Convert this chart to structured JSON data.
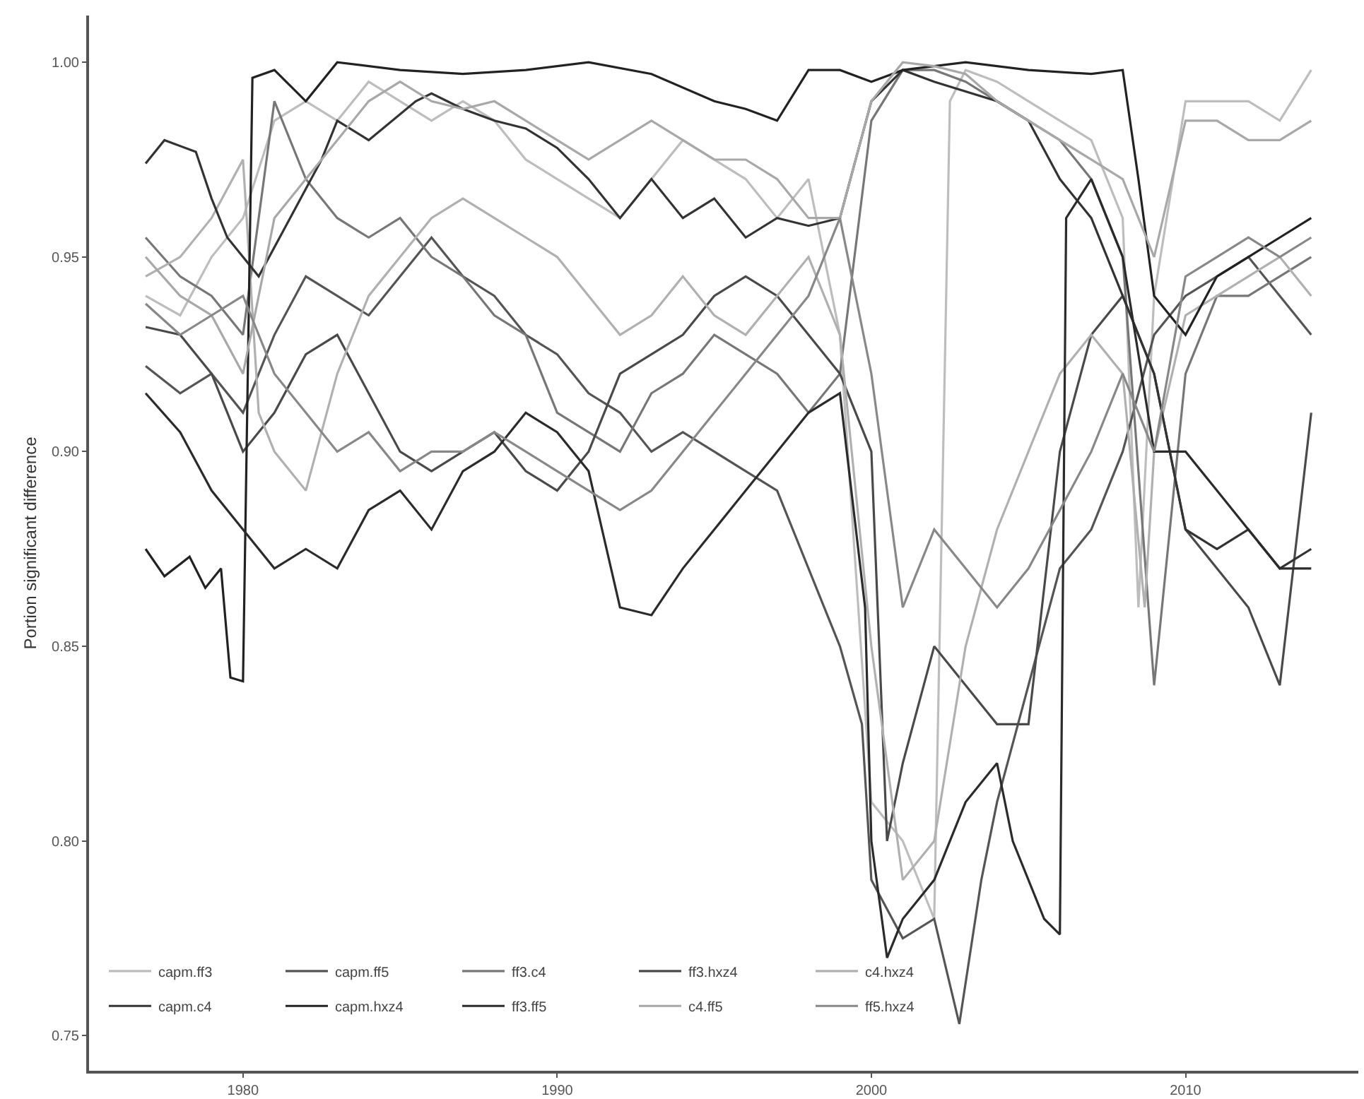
{
  "chart_data": {
    "type": "line",
    "ylabel": "Portion significant difference",
    "xlim": [
      1975.1,
      2015.5
    ],
    "xticks": [
      1980,
      1990,
      2000,
      2010
    ],
    "ylim": [
      0.741,
      1.012
    ],
    "yticks": [
      0.75,
      {
        "value": 0.8,
        "label": "0.80"
      },
      0.85,
      {
        "value": 0.9,
        "label": "0.90"
      },
      0.95,
      {
        "value": 1.0,
        "label": "1.00"
      }
    ],
    "legend": "bottom left",
    "series": [
      {
        "name": "capm.ff3",
        "color": "#bdbdbd",
        "x": [
          1976.9,
          1978,
          1979,
          1980,
          1981,
          1982,
          1983,
          1984,
          1985,
          1986,
          1987,
          1988,
          1989,
          1990,
          1991,
          1992,
          1993,
          1994,
          1995,
          1996,
          1997,
          1998,
          1999,
          2000,
          2001,
          2002,
          2002.5,
          2003,
          2004,
          2005,
          2006,
          2007,
          2008,
          2008.5,
          2009,
          2010,
          2011,
          2012,
          2013,
          2014
        ],
        "values": [
          0.94,
          0.935,
          0.95,
          0.96,
          0.985,
          0.99,
          0.985,
          0.995,
          0.99,
          0.985,
          0.99,
          0.985,
          0.975,
          0.97,
          0.965,
          0.96,
          0.97,
          0.98,
          0.975,
          0.97,
          0.96,
          0.97,
          0.93,
          0.81,
          0.8,
          0.78,
          0.99,
          0.998,
          0.995,
          0.99,
          0.985,
          0.98,
          0.96,
          0.86,
          0.94,
          0.99,
          0.99,
          0.99,
          0.985,
          0.998
        ]
      },
      {
        "name": "capm.ff5",
        "color": "#555555",
        "x": [
          1976.9,
          1978,
          1979,
          1980,
          1981,
          1982,
          1983,
          1984,
          1985,
          1986,
          1987,
          1988,
          1989,
          1990,
          1991,
          1992,
          1993,
          1994,
          1995,
          1996,
          1997,
          1998,
          1999,
          1999.7,
          2000,
          2001,
          2002,
          2002.8,
          2003.5,
          2004,
          2005,
          2006,
          2007,
          2008,
          2009,
          2010,
          2011,
          2012,
          2013,
          2014
        ],
        "values": [
          0.922,
          0.915,
          0.92,
          0.91,
          0.93,
          0.945,
          0.94,
          0.935,
          0.945,
          0.955,
          0.945,
          0.94,
          0.93,
          0.925,
          0.915,
          0.91,
          0.9,
          0.905,
          0.9,
          0.895,
          0.89,
          0.87,
          0.85,
          0.83,
          0.79,
          0.775,
          0.78,
          0.753,
          0.79,
          0.81,
          0.84,
          0.87,
          0.88,
          0.9,
          0.93,
          0.94,
          0.945,
          0.95,
          0.94,
          0.93
        ]
      },
      {
        "name": "ff3.c4",
        "color": "#777777",
        "x": [
          1976.9,
          1978,
          1979,
          1980,
          1981,
          1982,
          1983,
          1984,
          1985,
          1986,
          1987,
          1988,
          1989,
          1990,
          1991,
          1992,
          1993,
          1994,
          1995,
          1996,
          1997,
          1998,
          1999,
          2000,
          2001,
          2002,
          2003,
          2004,
          2005,
          2006,
          2007,
          2008,
          2009,
          2010,
          2011,
          2012,
          2013,
          2014
        ],
        "values": [
          0.955,
          0.945,
          0.94,
          0.93,
          0.99,
          0.97,
          0.96,
          0.955,
          0.96,
          0.95,
          0.945,
          0.935,
          0.93,
          0.91,
          0.905,
          0.9,
          0.915,
          0.92,
          0.93,
          0.925,
          0.92,
          0.91,
          0.92,
          0.985,
          0.998,
          0.998,
          0.995,
          0.99,
          0.985,
          0.98,
          0.97,
          0.95,
          0.84,
          0.92,
          0.94,
          0.94,
          0.945,
          0.95
        ]
      },
      {
        "name": "ff3.hxz4",
        "color": "#4a4a4a",
        "x": [
          1976.9,
          1978,
          1979,
          1980,
          1981,
          1982,
          1983,
          1984,
          1985,
          1986,
          1987,
          1988,
          1989,
          1990,
          1991,
          1992,
          1993,
          1994,
          1995,
          1996,
          1997,
          1998,
          1999,
          2000,
          2000.5,
          2001,
          2002,
          2003,
          2004,
          2005,
          2006,
          2007,
          2008,
          2009,
          2010,
          2011,
          2012,
          2013,
          2014
        ],
        "values": [
          0.932,
          0.93,
          0.92,
          0.9,
          0.91,
          0.925,
          0.93,
          0.915,
          0.9,
          0.895,
          0.9,
          0.905,
          0.895,
          0.89,
          0.9,
          0.92,
          0.925,
          0.93,
          0.94,
          0.945,
          0.94,
          0.93,
          0.92,
          0.9,
          0.8,
          0.82,
          0.85,
          0.84,
          0.83,
          0.83,
          0.9,
          0.93,
          0.94,
          0.92,
          0.88,
          0.87,
          0.86,
          0.84,
          0.91
        ]
      },
      {
        "name": "c4.hxz4",
        "color": "#b0b0b0",
        "x": [
          1976.9,
          1978,
          1979,
          1980,
          1980.5,
          1981,
          1982,
          1983,
          1984,
          1985,
          1986,
          1987,
          1988,
          1989,
          1990,
          1991,
          1992,
          1993,
          1994,
          1995,
          1996,
          1997,
          1998,
          1999,
          2000,
          2001,
          2002,
          2003,
          2004,
          2005,
          2006,
          2007,
          2008,
          2008.7,
          2009,
          2010,
          2011,
          2012,
          2013,
          2014
        ],
        "values": [
          0.945,
          0.95,
          0.96,
          0.975,
          0.91,
          0.9,
          0.89,
          0.92,
          0.94,
          0.95,
          0.96,
          0.965,
          0.96,
          0.955,
          0.95,
          0.94,
          0.93,
          0.935,
          0.945,
          0.935,
          0.93,
          0.94,
          0.95,
          0.93,
          0.85,
          0.79,
          0.8,
          0.85,
          0.88,
          0.9,
          0.92,
          0.93,
          0.92,
          0.86,
          0.9,
          0.935,
          0.94,
          0.945,
          0.95,
          0.94
        ]
      },
      {
        "name": "capm.c4",
        "color": "#333333",
        "x": [
          1976.9,
          1977.5,
          1978.5,
          1979,
          1979.5,
          1980,
          1980.5,
          1981.5,
          1982.5,
          1983,
          1984,
          1985.5,
          1986,
          1987,
          1988,
          1989,
          1990,
          1991,
          1992,
          1993,
          1994,
          1995,
          1996,
          1997,
          1998,
          1999,
          2000,
          2001,
          2002,
          2004,
          2005,
          2006,
          2007,
          2008,
          2009,
          2010,
          2011,
          2012,
          2013,
          2014
        ],
        "values": [
          0.974,
          0.98,
          0.977,
          0.965,
          0.955,
          0.95,
          0.945,
          0.96,
          0.975,
          0.985,
          0.98,
          0.99,
          0.992,
          0.988,
          0.985,
          0.983,
          0.978,
          0.97,
          0.96,
          0.97,
          0.96,
          0.965,
          0.955,
          0.96,
          0.958,
          0.96,
          0.99,
          0.998,
          0.995,
          0.99,
          0.985,
          0.97,
          0.96,
          0.94,
          0.92,
          0.88,
          0.875,
          0.88,
          0.87,
          0.875
        ]
      },
      {
        "name": "capm.hxz4",
        "color": "#222222",
        "x": [
          1976.9,
          1977.5,
          1978.3,
          1978.8,
          1979.3,
          1979.6,
          1980,
          1980.3,
          1981,
          1982,
          1983,
          1985,
          1987,
          1989,
          1991,
          1993,
          1995,
          1996,
          1997,
          1998,
          1999,
          2000,
          2001,
          2003,
          2005,
          2007,
          2008,
          2008.5,
          2009,
          2010,
          2011,
          2012,
          2013,
          2014
        ],
        "values": [
          0.875,
          0.868,
          0.873,
          0.865,
          0.87,
          0.842,
          0.841,
          0.996,
          0.998,
          0.99,
          1.0,
          0.998,
          0.997,
          0.998,
          1.0,
          0.997,
          0.99,
          0.988,
          0.985,
          0.998,
          0.998,
          0.995,
          0.998,
          1.0,
          0.998,
          0.997,
          0.998,
          0.97,
          0.94,
          0.93,
          0.945,
          0.95,
          0.955,
          0.96
        ]
      },
      {
        "name": "ff3.ff5",
        "color": "#2b2b2b",
        "x": [
          1976.9,
          1978,
          1979,
          1980,
          1981,
          1982,
          1983,
          1984,
          1985,
          1986,
          1987,
          1988,
          1989,
          1990,
          1991,
          1992,
          1993,
          1994,
          1995,
          1996,
          1997,
          1998,
          1999,
          1999.8,
          2000,
          2000.5,
          2001,
          2002,
          2003,
          2004,
          2004.5,
          2005.5,
          2006,
          2006.2,
          2007,
          2008,
          2009,
          2010,
          2011,
          2012,
          2013,
          2014
        ],
        "values": [
          0.915,
          0.905,
          0.89,
          0.88,
          0.87,
          0.875,
          0.87,
          0.885,
          0.89,
          0.88,
          0.895,
          0.9,
          0.91,
          0.905,
          0.895,
          0.86,
          0.858,
          0.87,
          0.88,
          0.89,
          0.9,
          0.91,
          0.915,
          0.86,
          0.8,
          0.77,
          0.78,
          0.79,
          0.81,
          0.82,
          0.8,
          0.78,
          0.776,
          0.96,
          0.97,
          0.95,
          0.9,
          0.9,
          0.89,
          0.88,
          0.87,
          0.87
        ]
      },
      {
        "name": "c4.ff5",
        "color": "#a8a8a8",
        "x": [
          1976.9,
          1978,
          1979,
          1980,
          1981,
          1982,
          1983,
          1984,
          1985,
          1986,
          1987,
          1988,
          1989,
          1990,
          1991,
          1992,
          1993,
          1994,
          1995,
          1996,
          1997,
          1998,
          1999,
          2000,
          2001,
          2002,
          2003,
          2004,
          2005,
          2006,
          2007,
          2008,
          2009,
          2010,
          2011,
          2012,
          2013,
          2014
        ],
        "values": [
          0.95,
          0.94,
          0.935,
          0.92,
          0.96,
          0.97,
          0.98,
          0.99,
          0.995,
          0.99,
          0.988,
          0.99,
          0.985,
          0.98,
          0.975,
          0.98,
          0.985,
          0.98,
          0.975,
          0.975,
          0.97,
          0.96,
          0.96,
          0.99,
          1.0,
          0.999,
          0.997,
          0.99,
          0.985,
          0.98,
          0.975,
          0.97,
          0.95,
          0.985,
          0.985,
          0.98,
          0.98,
          0.985
        ]
      },
      {
        "name": "ff5.hxz4",
        "color": "#888888",
        "x": [
          1976.9,
          1978,
          1979,
          1980,
          1981,
          1982,
          1983,
          1984,
          1985,
          1986,
          1987,
          1988,
          1989,
          1990,
          1991,
          1992,
          1993,
          1994,
          1995,
          1996,
          1997,
          1998,
          1999,
          2000,
          2001,
          2002,
          2003,
          2004,
          2005,
          2006,
          2007,
          2008,
          2009,
          2010,
          2011,
          2012,
          2013,
          2014
        ],
        "values": [
          0.938,
          0.93,
          0.935,
          0.94,
          0.92,
          0.91,
          0.9,
          0.905,
          0.895,
          0.9,
          0.9,
          0.905,
          0.9,
          0.895,
          0.89,
          0.885,
          0.89,
          0.9,
          0.91,
          0.92,
          0.93,
          0.94,
          0.96,
          0.92,
          0.86,
          0.88,
          0.87,
          0.86,
          0.87,
          0.885,
          0.9,
          0.92,
          0.9,
          0.945,
          0.95,
          0.955,
          0.95,
          0.955
        ]
      }
    ]
  }
}
